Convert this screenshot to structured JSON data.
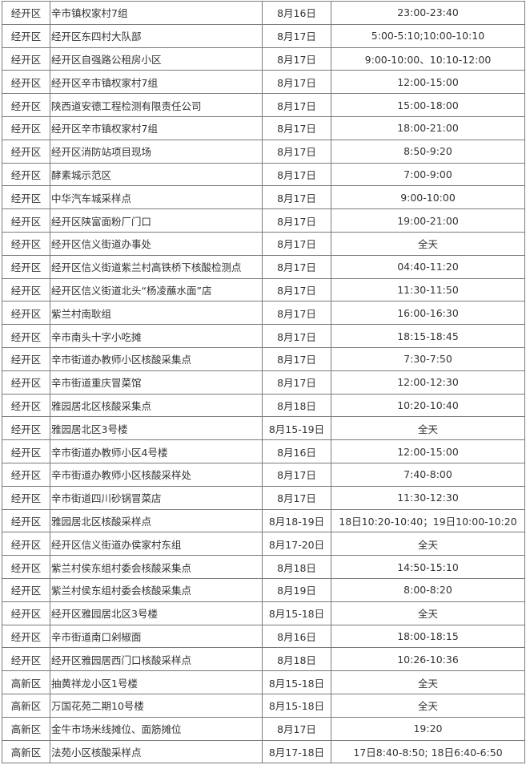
{
  "rows": [
    {
      "district": "经开区",
      "location": "辛市镇权家村7组",
      "date": "8月16日",
      "time": "23:00-23:40"
    },
    {
      "district": "经开区",
      "location": "经开区东四村大队部",
      "date": "8月17日",
      "time": "5:00-5:10;10:00-10:10"
    },
    {
      "district": "经开区",
      "location": "经开区自强路公租房小区",
      "date": "8月17日",
      "time": "9:00-10:00、10:10-12:00"
    },
    {
      "district": "经开区",
      "location": "经开区辛市镇权家村7组",
      "date": "8月17日",
      "time": "12:00-15:00"
    },
    {
      "district": "经开区",
      "location": "陕西道安德工程检测有限责任公司",
      "date": "8月17日",
      "time": "15:00-18:00"
    },
    {
      "district": "经开区",
      "location": "经开区辛市镇权家村7组",
      "date": "8月17日",
      "time": "18:00-21:00"
    },
    {
      "district": "经开区",
      "location": "经开区消防站项目现场",
      "date": "8月17日",
      "time": "8:50-9:20"
    },
    {
      "district": "经开区",
      "location": "酵素城示范区",
      "date": "8月17日",
      "time": "7:00-9:00"
    },
    {
      "district": "经开区",
      "location": "中华汽车城采样点",
      "date": "8月17日",
      "time": "9:00-10:00"
    },
    {
      "district": "经开区",
      "location": "经开区陕富面粉厂门口",
      "date": "8月17日",
      "time": "19:00-21:00"
    },
    {
      "district": "经开区",
      "location": "经开区信义街道办事处",
      "date": "8月17日",
      "time": "全天"
    },
    {
      "district": "经开区",
      "location": "经开区信义街道紫兰村高铁桥下核酸检测点",
      "date": "8月17日",
      "time": "04:40-11:20"
    },
    {
      "district": "经开区",
      "location": "经开区信义街道北头“杨凌蘸水面”店",
      "date": "8月17日",
      "time": "11:30-11:50"
    },
    {
      "district": "经开区",
      "location": "紫兰村南耿组",
      "date": "8月17日",
      "time": "16:00-16:30"
    },
    {
      "district": "经开区",
      "location": "辛市南头十字小吃摊",
      "date": "8月17日",
      "time": "18:15-18:45"
    },
    {
      "district": "经开区",
      "location": "辛市街道办教师小区核酸采集点",
      "date": "8月17日",
      "time": "7:30-7:50"
    },
    {
      "district": "经开区",
      "location": "辛市街道重庆冒菜馆",
      "date": "8月17日",
      "time": "12:00-12:30"
    },
    {
      "district": "经开区",
      "location": "雅园居北区核酸采集点",
      "date": "8月18日",
      "time": "10:20-10:40"
    },
    {
      "district": "经开区",
      "location": "雅园居北区3号楼",
      "date": "8月15-19日",
      "time": "全天"
    },
    {
      "district": "经开区",
      "location": "辛市街道办教师小区4号楼",
      "date": "8月16日",
      "time": "12:00-15:00"
    },
    {
      "district": "经开区",
      "location": "辛市街道办教师小区核酸采样处",
      "date": "8月17日",
      "time": "7:40-8:00"
    },
    {
      "district": "经开区",
      "location": "辛市街道四川砂锅冒菜店",
      "date": "8月17日",
      "time": "11:30-12:30"
    },
    {
      "district": "经开区",
      "location": "雅园居北区核酸采样点",
      "date": "8月18-19日",
      "time": "18日10:20-10:40；19日10:00-10:20"
    },
    {
      "district": "经开区",
      "location": "经开区信义街道办侯家村东组",
      "date": "8月17-20日",
      "time": "全天"
    },
    {
      "district": "经开区",
      "location": "紫兰村侯东组村委会核酸采集点",
      "date": "8月18日",
      "time": "14:50-15:10"
    },
    {
      "district": "经开区",
      "location": "紫兰村侯东组村委会核酸采集点",
      "date": "8月19日",
      "time": "8:00-8:20"
    },
    {
      "district": "经开区",
      "location": "经开区雅园居北区3号楼",
      "date": "8月15-18日",
      "time": "全天"
    },
    {
      "district": "经开区",
      "location": "辛市街道南口剁椒面",
      "date": "8月16日",
      "time": "18:00-18:15"
    },
    {
      "district": "经开区",
      "location": "经开区雅园居西门口核酸采样点",
      "date": "8月18日",
      "time": "10:26-10:36"
    },
    {
      "district": "高新区",
      "location": "抽黄祥龙小区1号楼",
      "date": "8月15-18日",
      "time": "全天"
    },
    {
      "district": "高新区",
      "location": "万国花苑二期10号楼",
      "date": "8月15-18日",
      "time": "全天"
    },
    {
      "district": "高新区",
      "location": "金牛市场米线摊位、面筋摊位",
      "date": "8月17日",
      "time": "19:20"
    },
    {
      "district": "高新区",
      "location": "法苑小区核酸采样点",
      "date": "8月17-18日",
      "time": "17日8:40-8:50; 18日6:40-6:50"
    }
  ]
}
